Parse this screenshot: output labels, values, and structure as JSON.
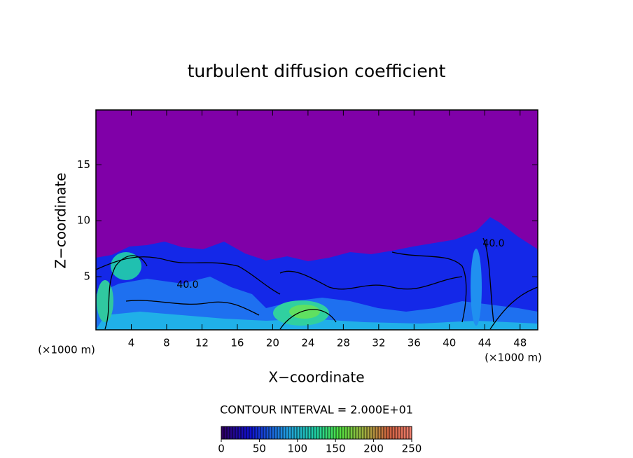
{
  "chart_data": {
    "type": "contour",
    "title": "turbulent diffusion coefficient",
    "x_label": "X−coordinate",
    "y_label": "Z−coordinate",
    "x_unit_label": "(×1000 m)",
    "xlim": [
      0,
      50
    ],
    "ylim": [
      0.25,
      19.9
    ],
    "xticks": [
      4,
      8,
      12,
      16,
      20,
      24,
      28,
      32,
      36,
      40,
      44,
      48
    ],
    "yticks": [
      5,
      10,
      15
    ],
    "contour_labels": [
      "40.0",
      "40.0"
    ],
    "contour_interval_label": "CONTOUR INTERVAL = 2.000E+01",
    "colorbar": {
      "lim": [
        0,
        250
      ],
      "ticks": [
        0,
        50,
        100,
        150,
        200,
        250
      ]
    }
  }
}
